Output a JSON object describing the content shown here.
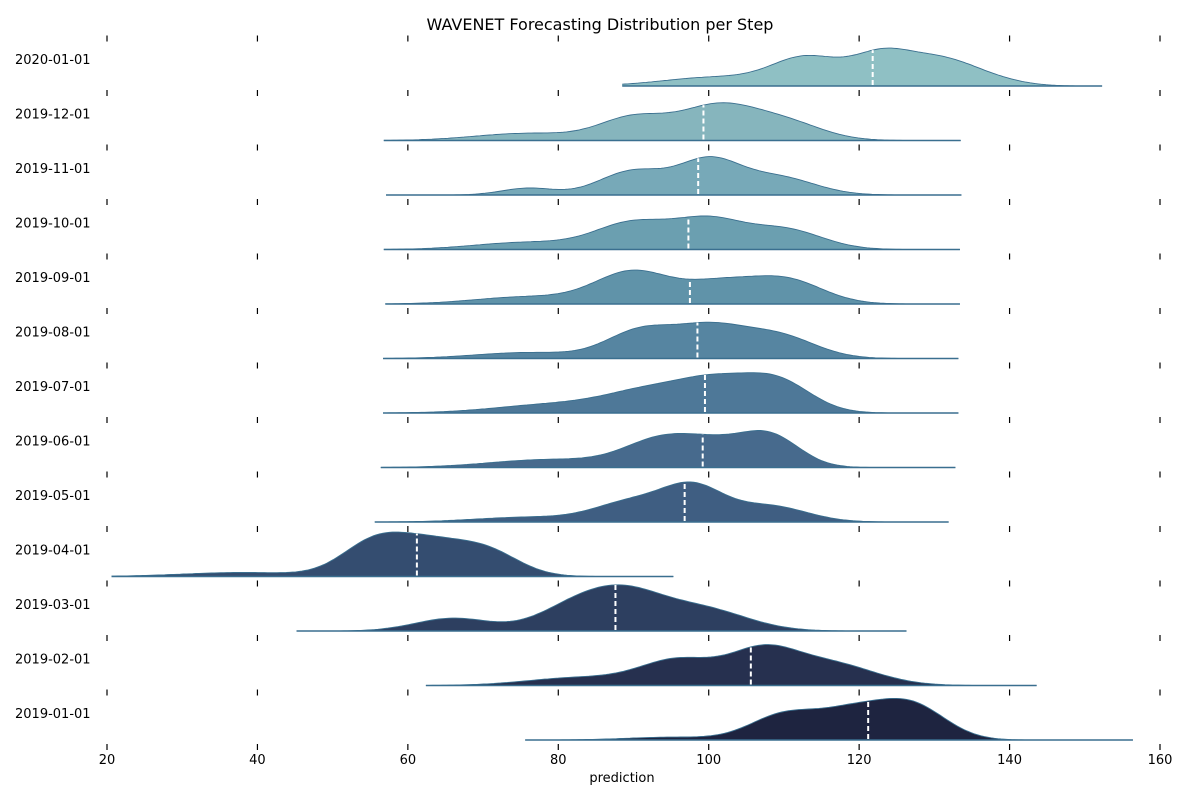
{
  "chart_data": {
    "type": "ridgeline",
    "title": "WAVENET Forecasting Distribution per Step",
    "xlabel": "prediction",
    "ylabel": "",
    "xlim": [
      20,
      160
    ],
    "xticks": [
      20,
      40,
      60,
      80,
      100,
      120,
      140,
      160
    ],
    "grid": false,
    "legend": "none",
    "median_line_color": "#ffffff",
    "rows": [
      {
        "label": "2020-01-01",
        "color": "#8fc0c4",
        "range": [
          88.5,
          152.3
        ],
        "median": 121.8,
        "peaks": [
          {
            "mu": 101,
            "sd": 7,
            "h": 0.22
          },
          {
            "mu": 113,
            "sd": 4.5,
            "h": 0.68
          },
          {
            "mu": 123,
            "sd": 4,
            "h": 0.75
          },
          {
            "mu": 131,
            "sd": 4.5,
            "h": 0.62
          },
          {
            "mu": 138,
            "sd": 4,
            "h": 0.12
          }
        ]
      },
      {
        "label": "2019-12-01",
        "color": "#86b5bd",
        "range": [
          56.8,
          133.5
        ],
        "median": 99.3,
        "peaks": [
          {
            "mu": 76,
            "sd": 7,
            "h": 0.18
          },
          {
            "mu": 90,
            "sd": 4.5,
            "h": 0.55
          },
          {
            "mu": 101,
            "sd": 5,
            "h": 0.82
          },
          {
            "mu": 110,
            "sd": 5,
            "h": 0.45
          }
        ]
      },
      {
        "label": "2019-11-01",
        "color": "#77a9b8",
        "range": [
          57.1,
          133.6
        ],
        "median": 98.6,
        "peaks": [
          {
            "mu": 76,
            "sd": 3.5,
            "h": 0.17
          },
          {
            "mu": 90,
            "sd": 4.5,
            "h": 0.6
          },
          {
            "mu": 100,
            "sd": 4,
            "h": 0.82
          },
          {
            "mu": 109,
            "sd": 5,
            "h": 0.45
          }
        ]
      },
      {
        "label": "2019-10-01",
        "color": "#6b9fb0",
        "range": [
          56.8,
          133.4
        ],
        "median": 97.3,
        "peaks": [
          {
            "mu": 76,
            "sd": 7,
            "h": 0.18
          },
          {
            "mu": 90,
            "sd": 5,
            "h": 0.65
          },
          {
            "mu": 100,
            "sd": 4.5,
            "h": 0.68
          },
          {
            "mu": 110,
            "sd": 5,
            "h": 0.5
          }
        ]
      },
      {
        "label": "2019-09-01",
        "color": "#6093a9",
        "range": [
          57.0,
          133.4
        ],
        "median": 97.5,
        "peaks": [
          {
            "mu": 76,
            "sd": 7,
            "h": 0.18
          },
          {
            "mu": 90,
            "sd": 5,
            "h": 0.8
          },
          {
            "mu": 101,
            "sd": 4.5,
            "h": 0.45
          },
          {
            "mu": 110,
            "sd": 5,
            "h": 0.62
          }
        ]
      },
      {
        "label": "2019-08-01",
        "color": "#5685a1",
        "range": [
          56.7,
          133.2
        ],
        "median": 98.5,
        "peaks": [
          {
            "mu": 76,
            "sd": 7,
            "h": 0.15
          },
          {
            "mu": 91,
            "sd": 4.5,
            "h": 0.68
          },
          {
            "mu": 100,
            "sd": 4.5,
            "h": 0.7
          },
          {
            "mu": 109,
            "sd": 5,
            "h": 0.58
          }
        ]
      },
      {
        "label": "2019-07-01",
        "color": "#4e7898",
        "range": [
          56.7,
          133.2
        ],
        "median": 99.5,
        "peaks": [
          {
            "mu": 80,
            "sd": 8,
            "h": 0.22
          },
          {
            "mu": 93,
            "sd": 6,
            "h": 0.55
          },
          {
            "mu": 101,
            "sd": 4.5,
            "h": 0.58
          },
          {
            "mu": 109,
            "sd": 4.5,
            "h": 0.8
          }
        ]
      },
      {
        "label": "2019-06-01",
        "color": "#476a8d",
        "range": [
          56.4,
          132.8
        ],
        "median": 99.2,
        "peaks": [
          {
            "mu": 79,
            "sd": 8,
            "h": 0.2
          },
          {
            "mu": 94,
            "sd": 5,
            "h": 0.7
          },
          {
            "mu": 101,
            "sd": 4,
            "h": 0.38
          },
          {
            "mu": 108,
            "sd": 4,
            "h": 0.8
          }
        ]
      },
      {
        "label": "2019-05-01",
        "color": "#3f5e82",
        "range": [
          55.6,
          131.9
        ],
        "median": 96.8,
        "peaks": [
          {
            "mu": 76,
            "sd": 7,
            "h": 0.12
          },
          {
            "mu": 90,
            "sd": 5,
            "h": 0.5
          },
          {
            "mu": 98,
            "sd": 4,
            "h": 0.8
          },
          {
            "mu": 108,
            "sd": 5,
            "h": 0.4
          }
        ]
      },
      {
        "label": "2019-04-01",
        "color": "#344d70",
        "range": [
          20.6,
          95.3
        ],
        "median": 61.2,
        "peaks": [
          {
            "mu": 38,
            "sd": 8,
            "h": 0.1
          },
          {
            "mu": 56,
            "sd": 4.5,
            "h": 0.92
          },
          {
            "mu": 63,
            "sd": 4,
            "h": 0.55
          },
          {
            "mu": 70,
            "sd": 4.5,
            "h": 0.68
          }
        ]
      },
      {
        "label": "2019-03-01",
        "color": "#2d3f60",
        "range": [
          45.2,
          126.3
        ],
        "median": 87.6,
        "peaks": [
          {
            "mu": 66,
            "sd": 5,
            "h": 0.32
          },
          {
            "mu": 82,
            "sd": 5,
            "h": 0.55
          },
          {
            "mu": 89,
            "sd": 5,
            "h": 0.8
          },
          {
            "mu": 99,
            "sd": 6,
            "h": 0.55
          }
        ]
      },
      {
        "label": "2019-02-01",
        "color": "#26304f",
        "range": [
          62.4,
          143.6
        ],
        "median": 105.6,
        "peaks": [
          {
            "mu": 83,
            "sd": 7,
            "h": 0.2
          },
          {
            "mu": 96,
            "sd": 5,
            "h": 0.62
          },
          {
            "mu": 107,
            "sd": 4.5,
            "h": 0.78
          },
          {
            "mu": 116,
            "sd": 6,
            "h": 0.55
          }
        ]
      },
      {
        "label": "2019-01-01",
        "color": "#1e2440",
        "range": [
          75.6,
          156.4
        ],
        "median": 121.2,
        "peaks": [
          {
            "mu": 95,
            "sd": 6,
            "h": 0.07
          },
          {
            "mu": 110,
            "sd": 4.5,
            "h": 0.62
          },
          {
            "mu": 119,
            "sd": 4.5,
            "h": 0.65
          },
          {
            "mu": 127,
            "sd": 4.5,
            "h": 0.85
          }
        ]
      }
    ]
  }
}
